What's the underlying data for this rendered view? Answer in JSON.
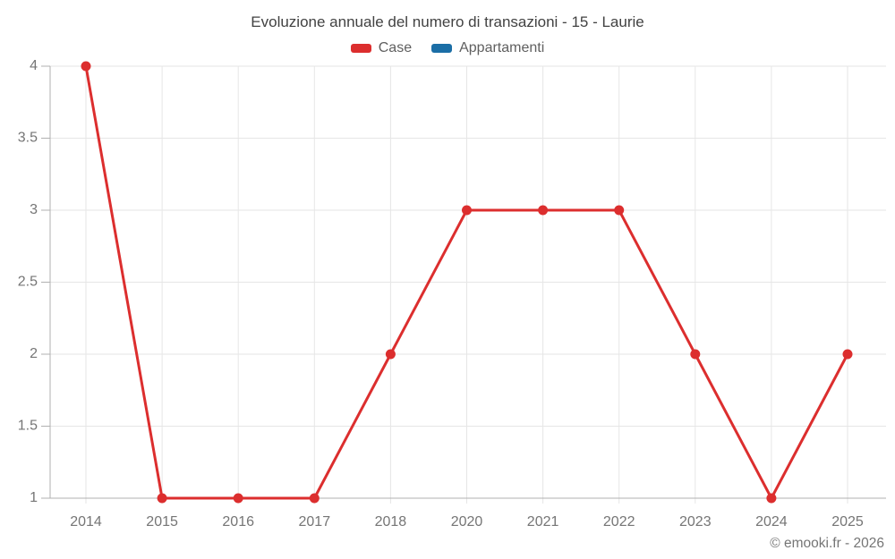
{
  "chart_data": {
    "type": "line",
    "title": "Evoluzione annuale del numero di transazioni - 15 - Laurie",
    "categories": [
      "2014",
      "2015",
      "2016",
      "2017",
      "2018",
      "2020",
      "2021",
      "2022",
      "2023",
      "2024",
      "2025"
    ],
    "series": [
      {
        "name": "Case",
        "color": "#dc2e2e",
        "values": [
          4,
          1,
          1,
          1,
          2,
          3,
          3,
          3,
          2,
          1,
          2
        ]
      },
      {
        "name": "Appartamenti",
        "color": "#1b6ea6",
        "values": []
      }
    ],
    "xlabel": "",
    "ylabel": "",
    "ylim": [
      1,
      4
    ],
    "y_ticks": [
      1,
      1.5,
      2,
      2.5,
      3,
      3.5,
      4
    ],
    "y_tick_labels": [
      "1",
      "1.5",
      "2",
      "2.5",
      "3",
      "3.5",
      "4"
    ],
    "grid": true,
    "legend_position": "top"
  },
  "colors": {
    "grid": "#e6e6e6",
    "axis": "#b0b0b0",
    "tick_label": "#757575",
    "title": "#424242",
    "legend_text": "#5f5f5f"
  },
  "footer": {
    "credit": "© emooki.fr - 2026"
  }
}
